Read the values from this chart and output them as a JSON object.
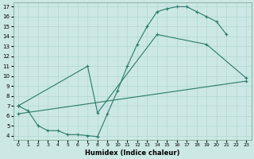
{
  "xlabel": "Humidex (Indice chaleur)",
  "background_color": "#cce8e4",
  "grid_color": "#b0d8d0",
  "line_color": "#2a7a6a",
  "xlim": [
    -0.5,
    23.5
  ],
  "ylim": [
    3.6,
    17.4
  ],
  "xticks": [
    0,
    1,
    2,
    3,
    4,
    5,
    6,
    7,
    8,
    9,
    10,
    11,
    12,
    13,
    14,
    15,
    16,
    17,
    18,
    19,
    20,
    21,
    22,
    23
  ],
  "yticks": [
    4,
    5,
    6,
    7,
    8,
    9,
    10,
    11,
    12,
    13,
    14,
    15,
    16,
    17
  ],
  "line1_x": [
    0,
    1,
    2,
    3,
    4,
    5,
    6,
    7,
    8,
    9,
    10,
    11,
    12,
    13,
    14,
    15,
    16,
    17,
    18,
    19,
    20,
    21
  ],
  "line1_y": [
    7.0,
    6.5,
    5.0,
    4.5,
    4.5,
    4.1,
    4.1,
    4.0,
    3.9,
    6.2,
    8.5,
    11.0,
    13.2,
    15.0,
    16.5,
    16.8,
    17.0,
    17.0,
    16.5,
    16.0,
    15.5,
    14.2
  ],
  "line2_x": [
    0,
    7,
    8,
    14,
    19,
    23
  ],
  "line2_y": [
    7.0,
    11.0,
    6.3,
    14.2,
    13.2,
    9.8
  ],
  "line3_x": [
    0,
    23
  ],
  "line3_y": [
    6.2,
    9.5
  ]
}
